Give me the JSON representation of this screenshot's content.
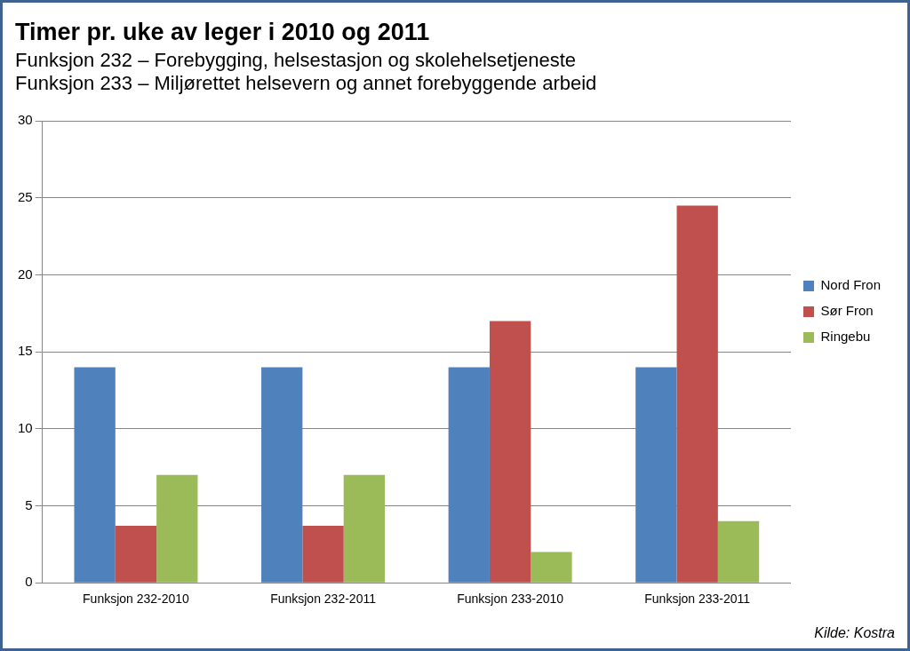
{
  "chart_data": {
    "type": "bar",
    "title": "Timer pr. uke av leger i 2010 og 2011",
    "subtitle": [
      "Funksjon 232 – Forebygging, helsestasjon og skolehelsetjeneste",
      "Funksjon 233 – Miljørettet helsevern og annet forebyggende arbeid"
    ],
    "annotations": [
      "Kilde: Kostra"
    ],
    "categories": [
      "Funksjon 232-2010",
      "Funksjon 232-2011",
      "Funksjon 233-2010",
      "Funksjon 233-2011"
    ],
    "series": [
      {
        "name": "Nord Fron",
        "color": "#4f81bd",
        "values": [
          14,
          14,
          14,
          14
        ]
      },
      {
        "name": "Sør Fron",
        "color": "#c0504d",
        "values": [
          3.7,
          3.7,
          17,
          24.5
        ]
      },
      {
        "name": "Ringebu",
        "color": "#9bbb59",
        "values": [
          7,
          7,
          2,
          4
        ]
      }
    ],
    "ylim": [
      0,
      30
    ],
    "yticks": [
      0,
      5,
      10,
      15,
      20,
      25,
      30
    ],
    "grid": true,
    "legend": "right"
  }
}
